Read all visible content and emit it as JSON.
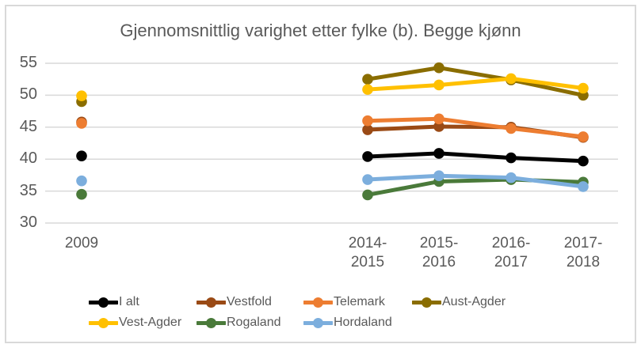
{
  "chart_data": {
    "type": "line",
    "title": "Gjennomsnittlig varighet etter fylke (b). Begge kjønn",
    "categories": [
      "2009",
      "2014-2015",
      "2015-2016",
      "2016-2017",
      "2017-2018"
    ],
    "x_tick_lines": [
      [
        "2009"
      ],
      [
        "2014-",
        "2015"
      ],
      [
        "2015-",
        "2016"
      ],
      [
        "2016-",
        "2017"
      ],
      [
        "2017-",
        "2018"
      ]
    ],
    "y_ticks": [
      55,
      50,
      45,
      40,
      35,
      30
    ],
    "ymin": 30,
    "ymax": 55,
    "grid": true,
    "legend_position": "bottom",
    "segments": [
      [
        0
      ],
      [
        1,
        2,
        3,
        4
      ]
    ],
    "series": [
      {
        "name": "I alt",
        "color": "#000000",
        "values": [
          40.5,
          40.4,
          40.9,
          40.2,
          39.7
        ]
      },
      {
        "name": "Vestfold",
        "color": "#9A4A15",
        "values": [
          45.8,
          44.6,
          45.1,
          45.0,
          43.4
        ]
      },
      {
        "name": "Telemark",
        "color": "#ED7D31",
        "values": [
          45.6,
          46.0,
          46.3,
          44.8,
          43.5
        ]
      },
      {
        "name": "Aust-Agder",
        "color": "#8A6D00",
        "values": [
          49.0,
          52.5,
          54.3,
          52.4,
          50.0
        ]
      },
      {
        "name": "Vest-Agder",
        "color": "#FFC000",
        "values": [
          49.9,
          50.9,
          51.6,
          52.6,
          51.1
        ]
      },
      {
        "name": "Rogaland",
        "color": "#4A7A3A",
        "values": [
          34.5,
          34.4,
          36.5,
          36.8,
          36.4
        ]
      },
      {
        "name": "Hordaland",
        "color": "#7CAEDD",
        "values": [
          36.6,
          36.8,
          37.4,
          37.1,
          35.7
        ]
      }
    ],
    "legend_rows": [
      [
        "I alt",
        "Vestfold",
        "Telemark",
        "Aust-Agder"
      ],
      [
        "Vest-Agder",
        "Rogaland",
        "Hordaland"
      ]
    ]
  },
  "style": {
    "text_color": "#595959",
    "gridline_color": "#D9D9D9",
    "frame_border_color": "#D9D9D9",
    "background_color": "#FFFFFF"
  }
}
